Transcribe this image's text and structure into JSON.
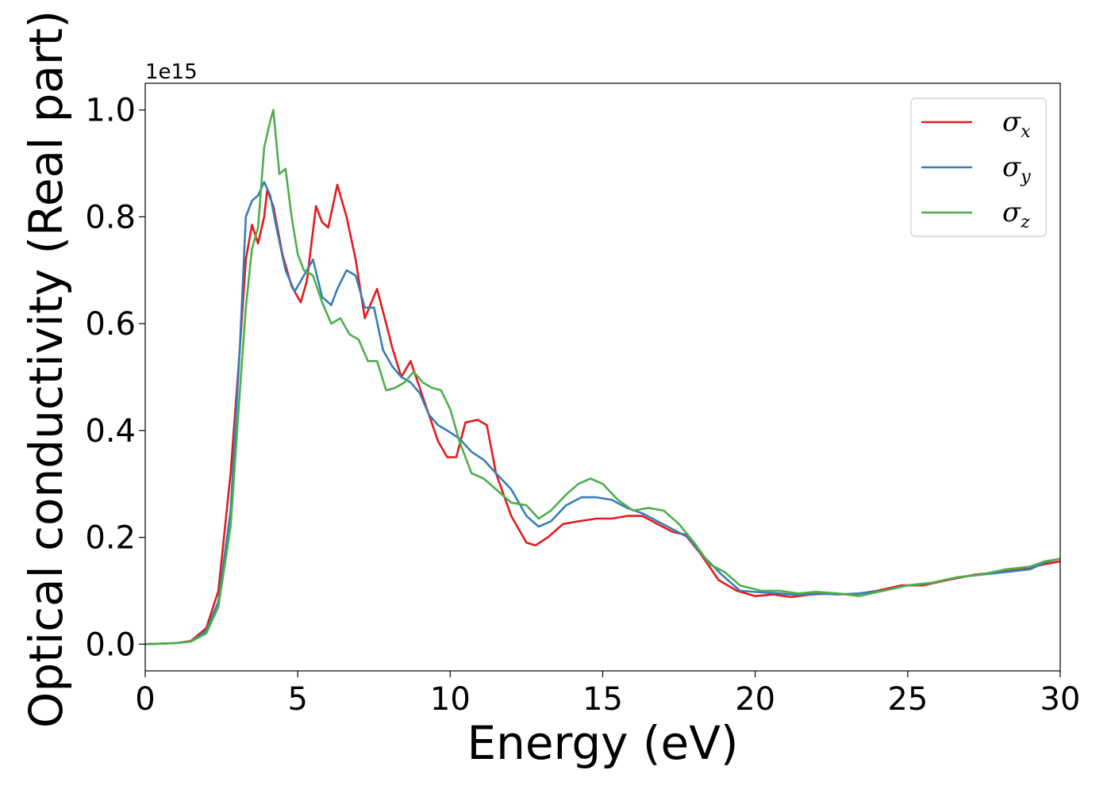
{
  "chart_data": {
    "type": "line",
    "title": "",
    "xlabel": "Energy (eV)",
    "ylabel": "Optical conductivity (Real part)",
    "y_offset_label": "1e15",
    "xlim": [
      0,
      30
    ],
    "ylim": [
      -0.05,
      1.05
    ],
    "xticks": [
      0,
      5,
      10,
      15,
      20,
      25,
      30
    ],
    "yticks": [
      0.0,
      0.2,
      0.4,
      0.6,
      0.8,
      1.0
    ],
    "xtick_labels": [
      "0",
      "5",
      "10",
      "15",
      "20",
      "25",
      "30"
    ],
    "ytick_labels": [
      "0.0",
      "0.2",
      "0.4",
      "0.6",
      "0.8",
      "1.0"
    ],
    "grid": false,
    "legend_position": "top-right",
    "series": [
      {
        "name": "σ",
        "subscript": "x",
        "color": "#e41a1c",
        "points": [
          [
            0,
            0
          ],
          [
            1,
            0.002
          ],
          [
            1.5,
            0.006
          ],
          [
            2,
            0.03
          ],
          [
            2.4,
            0.1
          ],
          [
            2.8,
            0.32
          ],
          [
            3.1,
            0.55
          ],
          [
            3.3,
            0.72
          ],
          [
            3.5,
            0.785
          ],
          [
            3.7,
            0.75
          ],
          [
            3.9,
            0.8
          ],
          [
            4.0,
            0.85
          ],
          [
            4.2,
            0.82
          ],
          [
            4.5,
            0.73
          ],
          [
            4.8,
            0.67
          ],
          [
            5.1,
            0.64
          ],
          [
            5.3,
            0.68
          ],
          [
            5.6,
            0.82
          ],
          [
            5.8,
            0.79
          ],
          [
            6.0,
            0.78
          ],
          [
            6.3,
            0.86
          ],
          [
            6.6,
            0.8
          ],
          [
            6.9,
            0.72
          ],
          [
            7.2,
            0.61
          ],
          [
            7.6,
            0.665
          ],
          [
            7.9,
            0.6
          ],
          [
            8.1,
            0.555
          ],
          [
            8.4,
            0.5
          ],
          [
            8.7,
            0.53
          ],
          [
            9.0,
            0.48
          ],
          [
            9.3,
            0.43
          ],
          [
            9.6,
            0.38
          ],
          [
            9.9,
            0.35
          ],
          [
            10.2,
            0.35
          ],
          [
            10.5,
            0.415
          ],
          [
            10.9,
            0.42
          ],
          [
            11.2,
            0.41
          ],
          [
            11.5,
            0.32
          ],
          [
            12.0,
            0.24
          ],
          [
            12.5,
            0.19
          ],
          [
            12.8,
            0.185
          ],
          [
            13.2,
            0.2
          ],
          [
            13.7,
            0.225
          ],
          [
            14.2,
            0.23
          ],
          [
            14.8,
            0.235
          ],
          [
            15.3,
            0.235
          ],
          [
            15.8,
            0.24
          ],
          [
            16.3,
            0.24
          ],
          [
            16.8,
            0.225
          ],
          [
            17.3,
            0.21
          ],
          [
            17.7,
            0.205
          ],
          [
            18.2,
            0.17
          ],
          [
            18.8,
            0.12
          ],
          [
            19.4,
            0.1
          ],
          [
            20.0,
            0.09
          ],
          [
            20.6,
            0.093
          ],
          [
            21.2,
            0.088
          ],
          [
            21.8,
            0.093
          ],
          [
            22.5,
            0.095
          ],
          [
            23.2,
            0.093
          ],
          [
            24.0,
            0.1
          ],
          [
            24.8,
            0.11
          ],
          [
            25.5,
            0.11
          ],
          [
            26.3,
            0.12
          ],
          [
            27.2,
            0.13
          ],
          [
            28.0,
            0.135
          ],
          [
            28.8,
            0.14
          ],
          [
            29.5,
            0.15
          ],
          [
            30,
            0.155
          ]
        ]
      },
      {
        "name": "σ",
        "subscript": "y",
        "color": "#377eb8",
        "points": [
          [
            0,
            0
          ],
          [
            1,
            0.002
          ],
          [
            1.5,
            0.005
          ],
          [
            2,
            0.025
          ],
          [
            2.4,
            0.08
          ],
          [
            2.8,
            0.25
          ],
          [
            3.1,
            0.55
          ],
          [
            3.3,
            0.8
          ],
          [
            3.5,
            0.83
          ],
          [
            3.7,
            0.84
          ],
          [
            3.9,
            0.865
          ],
          [
            4.1,
            0.84
          ],
          [
            4.3,
            0.78
          ],
          [
            4.6,
            0.7
          ],
          [
            4.9,
            0.66
          ],
          [
            5.2,
            0.69
          ],
          [
            5.5,
            0.72
          ],
          [
            5.8,
            0.65
          ],
          [
            6.1,
            0.635
          ],
          [
            6.3,
            0.665
          ],
          [
            6.6,
            0.7
          ],
          [
            6.9,
            0.69
          ],
          [
            7.2,
            0.63
          ],
          [
            7.5,
            0.63
          ],
          [
            7.8,
            0.55
          ],
          [
            8.1,
            0.52
          ],
          [
            8.4,
            0.5
          ],
          [
            8.7,
            0.49
          ],
          [
            9.0,
            0.47
          ],
          [
            9.3,
            0.43
          ],
          [
            9.6,
            0.41
          ],
          [
            9.9,
            0.4
          ],
          [
            10.3,
            0.385
          ],
          [
            10.7,
            0.36
          ],
          [
            11.1,
            0.345
          ],
          [
            11.5,
            0.32
          ],
          [
            12.0,
            0.29
          ],
          [
            12.5,
            0.24
          ],
          [
            12.9,
            0.22
          ],
          [
            13.3,
            0.23
          ],
          [
            13.8,
            0.26
          ],
          [
            14.3,
            0.275
          ],
          [
            14.8,
            0.275
          ],
          [
            15.3,
            0.27
          ],
          [
            15.8,
            0.255
          ],
          [
            16.3,
            0.245
          ],
          [
            16.8,
            0.23
          ],
          [
            17.3,
            0.215
          ],
          [
            17.8,
            0.2
          ],
          [
            18.3,
            0.165
          ],
          [
            18.9,
            0.13
          ],
          [
            19.5,
            0.1
          ],
          [
            20.2,
            0.097
          ],
          [
            20.8,
            0.095
          ],
          [
            21.4,
            0.092
          ],
          [
            22.0,
            0.095
          ],
          [
            22.7,
            0.093
          ],
          [
            23.4,
            0.095
          ],
          [
            24.2,
            0.1
          ],
          [
            25.0,
            0.11
          ],
          [
            25.8,
            0.115
          ],
          [
            26.6,
            0.125
          ],
          [
            27.4,
            0.13
          ],
          [
            28.2,
            0.135
          ],
          [
            29.0,
            0.14
          ],
          [
            29.6,
            0.155
          ],
          [
            30,
            0.16
          ]
        ]
      },
      {
        "name": "σ",
        "subscript": "z",
        "color": "#4daf4a",
        "points": [
          [
            0,
            0
          ],
          [
            1,
            0.002
          ],
          [
            1.5,
            0.005
          ],
          [
            2,
            0.02
          ],
          [
            2.4,
            0.07
          ],
          [
            2.8,
            0.22
          ],
          [
            3.1,
            0.47
          ],
          [
            3.3,
            0.63
          ],
          [
            3.5,
            0.74
          ],
          [
            3.7,
            0.78
          ],
          [
            3.9,
            0.93
          ],
          [
            4.1,
            0.98
          ],
          [
            4.2,
            1.0
          ],
          [
            4.4,
            0.88
          ],
          [
            4.6,
            0.89
          ],
          [
            4.8,
            0.8
          ],
          [
            5.0,
            0.73
          ],
          [
            5.2,
            0.7
          ],
          [
            5.5,
            0.69
          ],
          [
            5.8,
            0.64
          ],
          [
            6.1,
            0.6
          ],
          [
            6.4,
            0.61
          ],
          [
            6.7,
            0.58
          ],
          [
            7.0,
            0.57
          ],
          [
            7.3,
            0.53
          ],
          [
            7.6,
            0.53
          ],
          [
            7.9,
            0.475
          ],
          [
            8.2,
            0.48
          ],
          [
            8.5,
            0.49
          ],
          [
            8.8,
            0.51
          ],
          [
            9.1,
            0.49
          ],
          [
            9.4,
            0.48
          ],
          [
            9.7,
            0.475
          ],
          [
            10.0,
            0.44
          ],
          [
            10.3,
            0.38
          ],
          [
            10.7,
            0.32
          ],
          [
            11.1,
            0.31
          ],
          [
            11.5,
            0.29
          ],
          [
            12.0,
            0.265
          ],
          [
            12.5,
            0.26
          ],
          [
            12.9,
            0.235
          ],
          [
            13.3,
            0.25
          ],
          [
            13.8,
            0.28
          ],
          [
            14.2,
            0.3
          ],
          [
            14.6,
            0.31
          ],
          [
            15.0,
            0.3
          ],
          [
            15.5,
            0.27
          ],
          [
            16.0,
            0.25
          ],
          [
            16.5,
            0.255
          ],
          [
            17.0,
            0.25
          ],
          [
            17.5,
            0.225
          ],
          [
            18.0,
            0.19
          ],
          [
            18.5,
            0.15
          ],
          [
            19.0,
            0.135
          ],
          [
            19.5,
            0.11
          ],
          [
            20.2,
            0.1
          ],
          [
            20.8,
            0.1
          ],
          [
            21.4,
            0.095
          ],
          [
            22.0,
            0.098
          ],
          [
            22.7,
            0.095
          ],
          [
            23.4,
            0.09
          ],
          [
            24.2,
            0.1
          ],
          [
            25.0,
            0.11
          ],
          [
            25.8,
            0.115
          ],
          [
            26.6,
            0.125
          ],
          [
            27.4,
            0.13
          ],
          [
            28.2,
            0.14
          ],
          [
            29.0,
            0.145
          ],
          [
            29.5,
            0.155
          ],
          [
            30,
            0.16
          ]
        ]
      }
    ]
  }
}
